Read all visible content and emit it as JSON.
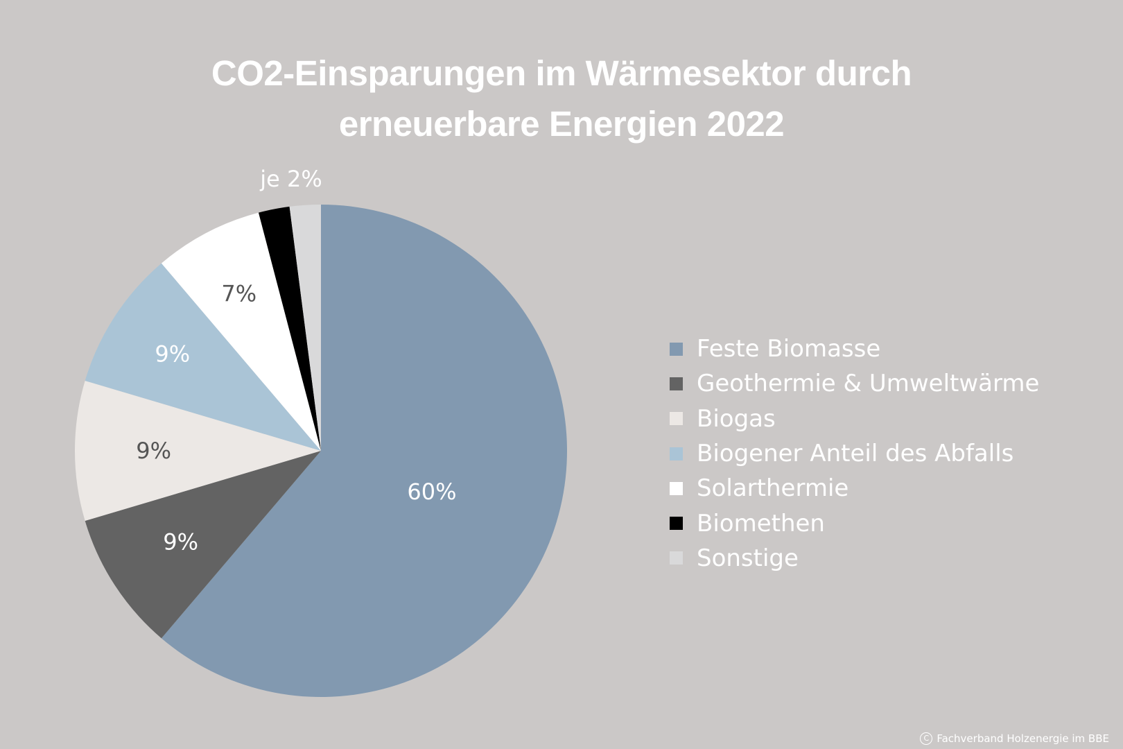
{
  "chart_data": {
    "type": "pie",
    "title": "CO2-Einsparungen im Wärmesektor durch erneuerbare Energien 2022",
    "title_lines": [
      "CO2-Einsparungen im Wärmesektor durch",
      "erneuerbare Energien 2022"
    ],
    "categories": [
      "Feste Biomasse",
      "Geothermie & Umweltwärme",
      "Biogas",
      "Biogener Anteil des Abfalls",
      "Solarthermie",
      "Biomethen",
      "Sonstige"
    ],
    "values": [
      60,
      9,
      9,
      9,
      7,
      2,
      2
    ],
    "unit": "%",
    "colors": [
      "#8299b0",
      "#636363",
      "#ece8e5",
      "#aac4d6",
      "#ffffff",
      "#000000",
      "#d9d9da"
    ],
    "data_labels": [
      "60%",
      "9%",
      "9%",
      "9%",
      "7%",
      "",
      ""
    ],
    "data_label_colors": [
      "#ffffff",
      "#ffffff",
      "#555555",
      "#ffffff",
      "#555555",
      "",
      ""
    ],
    "shared_label": "je 2%",
    "legend_position": "right"
  },
  "credit": {
    "icon": "copyright-icon",
    "icon_glyph": "C",
    "text": "Fachverband Holzenergie im BBE"
  }
}
